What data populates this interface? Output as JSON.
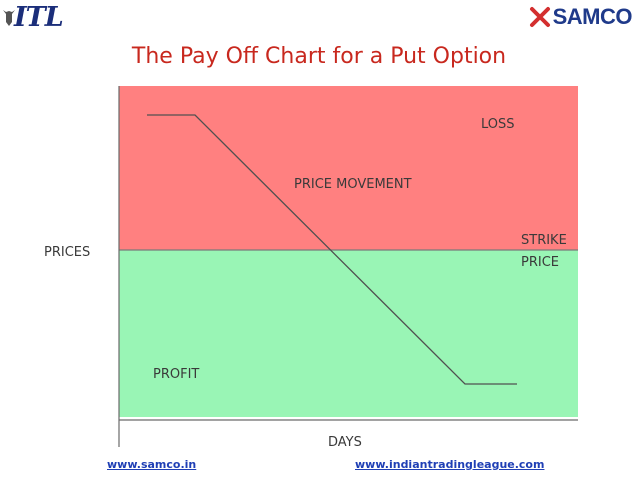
{
  "header": {
    "left_logo_text": "ITL",
    "right_logo_text": "SAMCO",
    "title": "The Pay Off Chart for a Put Option"
  },
  "diagram": {
    "loss_label": "LOSS",
    "price_movement_label": "PRICE MOVEMENT",
    "strike_label_line1": "STRIKE",
    "strike_label_line2": "PRICE",
    "profit_label": "PROFIT",
    "y_axis_label": "PRICES",
    "x_axis_label": "DAYS",
    "colors": {
      "loss_zone": "#ff8080",
      "profit_zone": "#99f5b5",
      "line": "#505050",
      "label_text": "#3a3a3a"
    }
  },
  "footer": {
    "left_link": "www.samco.in",
    "right_link": "www.indiantradingleague.com"
  }
}
